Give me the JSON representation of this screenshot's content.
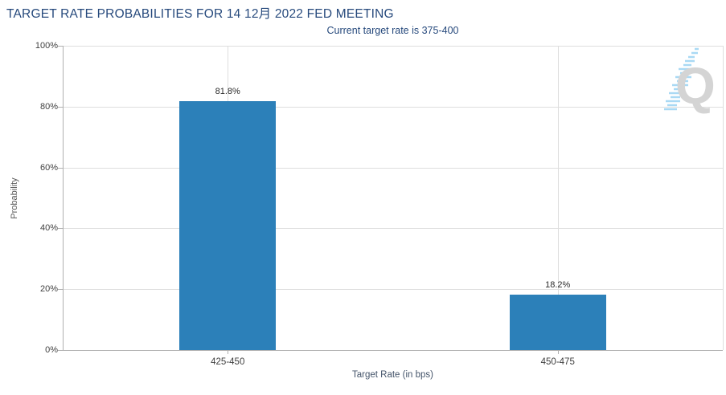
{
  "header": {
    "title": "TARGET RATE PROBABILITIES FOR 14 12月 2022 FED MEETING",
    "menu_icon": "hamburger-menu-icon"
  },
  "subtitle": "Current target rate is 375-400",
  "watermark_letter": "Q",
  "colors": {
    "title_navy": "#26497c",
    "bar_blue": "#2c80b9",
    "gridline_gray": "#dedede",
    "axis_gray": "#b0b0b0",
    "watermark_gray": "#d4d4d4",
    "watermark_blue": "#a9d9f4"
  },
  "chart_data": {
    "type": "bar",
    "title": "TARGET RATE PROBABILITIES FOR 14 12月 2022 FED MEETING",
    "subtitle": "Current target rate is 375-400",
    "categories": [
      "425-450",
      "450-475"
    ],
    "values": [
      81.8,
      18.2
    ],
    "value_labels": [
      "81.8%",
      "18.2%"
    ],
    "xlabel": "Target Rate (in bps)",
    "ylabel": "Probability",
    "ylim": [
      0,
      100
    ],
    "ytick_step": 20,
    "ytick_labels": [
      "0%",
      "20%",
      "40%",
      "60%",
      "80%",
      "100%"
    ],
    "grid": true,
    "legend": "none",
    "bar_color": "#2c80b9"
  }
}
